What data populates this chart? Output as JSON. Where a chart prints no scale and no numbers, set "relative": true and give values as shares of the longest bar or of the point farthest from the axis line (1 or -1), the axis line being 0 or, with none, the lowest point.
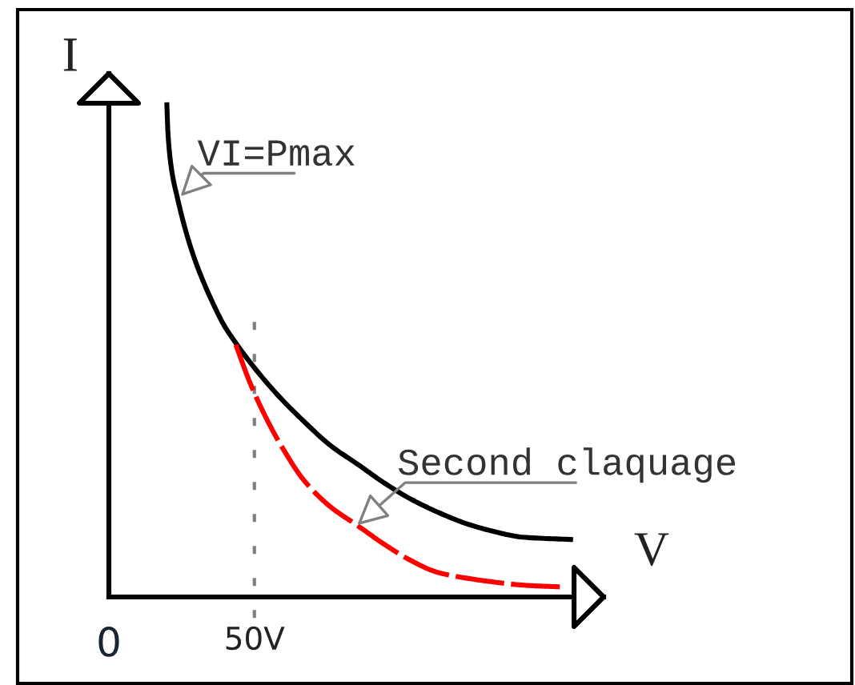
{
  "chart_data": {
    "type": "line",
    "xlabel": "V",
    "ylabel": "I",
    "relative": true,
    "xlim": [
      0,
      170
    ],
    "xticks": [
      {
        "value": 0,
        "label": "0"
      },
      {
        "value": 50,
        "label": "50V"
      }
    ],
    "series": [
      {
        "color": "#000000",
        "line_style": "solid",
        "x": [
          19.9,
          20.3,
          21.6,
          23.5,
          26.8,
          30.4,
          35.9,
          39.6,
          43.2,
          48.7,
          57.9,
          67.0,
          76.2,
          85.3,
          94.5,
          103.7,
          112.8,
          122.0,
          131.2,
          142.1,
          159.5
        ],
        "values": [
          1,
          0.938,
          0.862,
          0.808,
          0.732,
          0.668,
          0.592,
          0.549,
          0.517,
          0.473,
          0.409,
          0.355,
          0.306,
          0.269,
          0.231,
          0.198,
          0.172,
          0.15,
          0.134,
          0.121,
          0.116
        ]
      },
      {
        "color": "#ff0000",
        "line_style": "dashed",
        "x": [
          43.6,
          48.7,
          54.2,
          59.7,
          67.0,
          76.2,
          85.3,
          94.5,
          103.7,
          112.8,
          122.0,
          131.2,
          142.1,
          156.8
        ],
        "values": [
          0.51,
          0.43,
          0.36,
          0.301,
          0.236,
          0.182,
          0.145,
          0.107,
          0.074,
          0.05,
          0.039,
          0.031,
          0.024,
          0.02
        ]
      }
    ],
    "ref_lines": [
      {
        "axis": "x",
        "value": 50,
        "color": "#808080",
        "line_style": "dotted"
      }
    ],
    "annotations": [
      {
        "text": "VI=Pmax",
        "x": 24.6,
        "y": 0.81
      },
      {
        "text": "Second claquage",
        "x": 85.3,
        "y": 0.145
      }
    ]
  }
}
